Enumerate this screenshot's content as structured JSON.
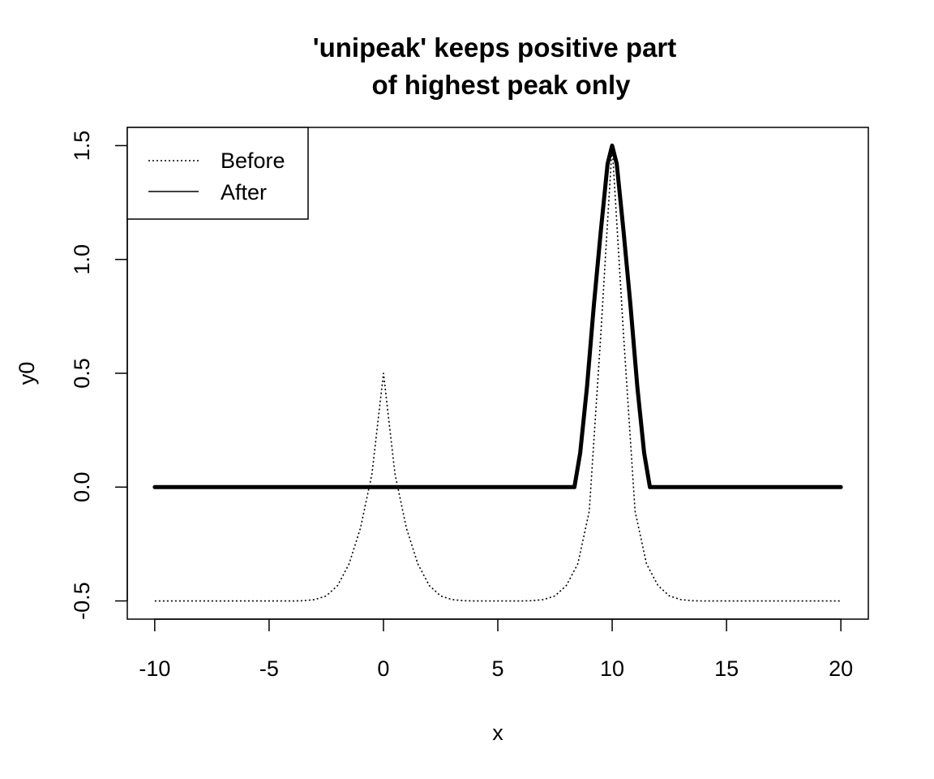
{
  "chart_data": {
    "type": "line",
    "title": [
      "'unipeak' keeps positive part",
      "of highest peak only"
    ],
    "xlabel": "x",
    "ylabel": "y0",
    "xlim": [
      -11.2,
      21.2
    ],
    "ylim": [
      -0.58,
      1.58
    ],
    "xticks": [
      -10,
      -5,
      0,
      5,
      10,
      15,
      20
    ],
    "xtick_labels": [
      "-10",
      "-5",
      "0",
      "5",
      "10",
      "15",
      "20"
    ],
    "yticks": [
      -0.5,
      0.0,
      0.5,
      1.0,
      1.5
    ],
    "ytick_labels": [
      "-0.5",
      "0.0",
      "0.5",
      "1.0",
      "1.5"
    ],
    "grid": false,
    "legend": {
      "position": "top-left",
      "entries": [
        {
          "label": "Before",
          "style": "dotted"
        },
        {
          "label": "After",
          "style": "solid"
        }
      ]
    },
    "series": [
      {
        "name": "Before",
        "style": "dotted",
        "color": "#000000",
        "x": [
          -10,
          -9,
          -8,
          -7,
          -6,
          -5,
          -4,
          -3.5,
          -3,
          -2.5,
          -2,
          -1.5,
          -1,
          -0.5,
          0,
          0.5,
          1,
          1.5,
          2,
          2.5,
          3,
          3.5,
          4,
          5,
          6,
          6.5,
          7,
          7.5,
          8,
          8.5,
          9,
          9.5,
          10,
          10.5,
          11,
          11.5,
          12,
          12.5,
          13,
          13.5,
          14,
          15,
          16,
          17,
          18,
          19,
          20
        ],
        "y": [
          -0.5,
          -0.5,
          -0.5,
          -0.5,
          -0.5,
          -0.5,
          -0.5,
          -0.499,
          -0.494,
          -0.478,
          -0.432,
          -0.337,
          -0.179,
          0.059,
          0.5,
          0.059,
          -0.179,
          -0.337,
          -0.432,
          -0.478,
          -0.494,
          -0.499,
          -0.5,
          -0.5,
          -0.5,
          -0.499,
          -0.494,
          -0.478,
          -0.432,
          -0.337,
          -0.106,
          0.662,
          1.5,
          0.662,
          -0.106,
          -0.337,
          -0.432,
          -0.478,
          -0.494,
          -0.499,
          -0.5,
          -0.5,
          -0.5,
          -0.5,
          -0.5,
          -0.5,
          -0.5
        ]
      },
      {
        "name": "After",
        "style": "solid",
        "color": "#000000",
        "x": [
          -10,
          8.35,
          8.6,
          8.9,
          9.2,
          9.5,
          9.8,
          10,
          10.2,
          10.5,
          10.8,
          11.1,
          11.4,
          11.65,
          20
        ],
        "y": [
          0,
          0,
          0.15,
          0.44,
          0.8,
          1.12,
          1.42,
          1.5,
          1.42,
          1.12,
          0.8,
          0.44,
          0.15,
          0,
          0
        ]
      }
    ]
  }
}
